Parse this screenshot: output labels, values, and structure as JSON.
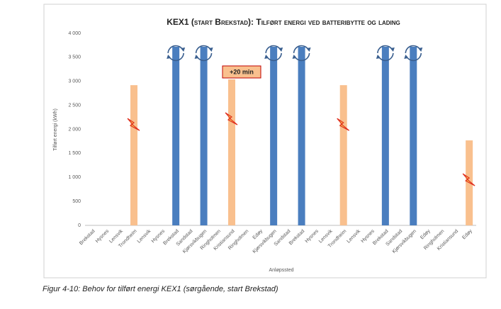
{
  "chart_data": {
    "type": "bar",
    "title": "KEX1 (start Brekstad): Tilført energi ved batteribytte og lading",
    "y_label": "Tilført energi (kWh)",
    "x_label": "Anløpssted",
    "annotation": "+20 min",
    "caption": "Figur 4-10: Behov for tilført energi KEX1 (sørgående, start Brekstad)",
    "categories": [
      "Brekstad",
      "Hysnes",
      "Lensvik",
      "Trondheim",
      "Lensvik",
      "Hysnes",
      "Brekstad",
      "Sandstad",
      "Kjørsvikbugen",
      "Ringholmen",
      "Kristiansund",
      "Ringholmen",
      "Edøy",
      "Kjørsvikbugen",
      "Sandstad",
      "Brekstad",
      "Hysnes",
      "Lensvik",
      "Trondheim",
      "Lensvik",
      "Hysnes",
      "Brekstad",
      "Sandstad",
      "Kjørsvikbugen",
      "Edøy",
      "Ringholmen",
      "Kristiansund",
      "Edøy"
    ],
    "series": [
      {
        "color": "#f9c08e",
        "values": [
          null,
          null,
          null,
          2920,
          null,
          null,
          null,
          null,
          null,
          null,
          3040,
          null,
          null,
          null,
          null,
          null,
          null,
          null,
          2920,
          null,
          null,
          null,
          null,
          null,
          null,
          null,
          null,
          1770
        ]
      },
      {
        "color": "#4a7ebf",
        "values": [
          null,
          null,
          null,
          null,
          null,
          null,
          3720,
          null,
          3720,
          null,
          null,
          null,
          null,
          3720,
          null,
          3720,
          null,
          null,
          null,
          null,
          null,
          3720,
          null,
          3720,
          null,
          null,
          null,
          null
        ]
      }
    ],
    "ylim": [
      0,
      4000
    ],
    "yticks": [
      {
        "value": 0,
        "label": "0"
      },
      {
        "value": 500,
        "label": "500"
      },
      {
        "value": 1000,
        "label": "1 000"
      },
      {
        "value": 1500,
        "label": "1 500"
      },
      {
        "value": 2000,
        "label": "2 000"
      },
      {
        "value": 2500,
        "label": "2 500"
      },
      {
        "value": 3000,
        "label": "3 000"
      },
      {
        "value": 3500,
        "label": "3 500"
      },
      {
        "value": 4000,
        "label": "4 000"
      }
    ],
    "grid": false
  }
}
